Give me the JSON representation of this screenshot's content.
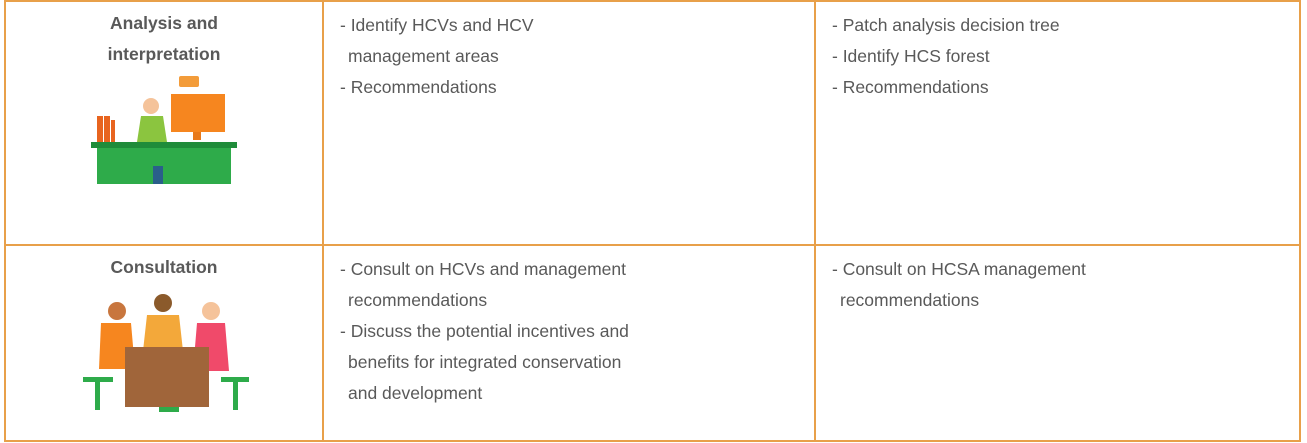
{
  "table": {
    "rows": [
      {
        "label": [
          "Analysis and",
          "interpretation"
        ],
        "hcv": [
          [
            "- Identify HCVs and HCV",
            "management areas"
          ],
          [
            "- Recommendations"
          ]
        ],
        "hcs": [
          [
            "- Patch analysis decision tree"
          ],
          [
            "- Identify HCS forest"
          ],
          [
            "- Recommendations"
          ]
        ]
      },
      {
        "label": [
          "Consultation"
        ],
        "hcv": [
          [
            "- Consult on HCVs and management",
            "recommendations"
          ],
          [
            "- Discuss the potential incentives and",
            "benefits for integrated conservation",
            "and development"
          ]
        ],
        "hcs": [
          [
            "- Consult on HCSA management",
            "recommendations"
          ]
        ]
      }
    ]
  }
}
